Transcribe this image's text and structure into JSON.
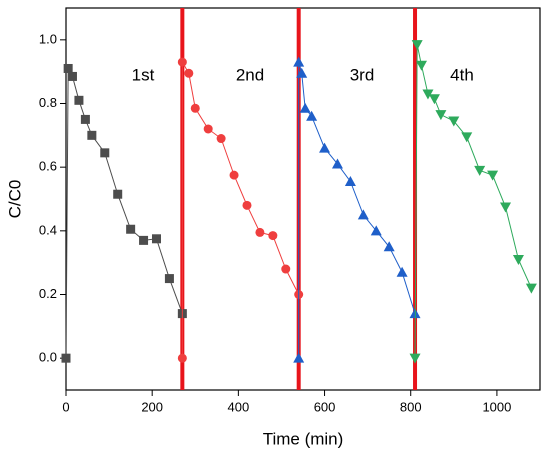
{
  "chart_data": {
    "type": "line",
    "x_label": "Time (min)",
    "y_label": "C/C0",
    "xlim": [
      0,
      1100
    ],
    "xticks": [
      0,
      200,
      400,
      600,
      800,
      1000
    ],
    "ylim": [
      -0.1,
      1.1
    ],
    "yticks": [
      {
        "value": 0,
        "label": "0.0"
      },
      0.2,
      0.4,
      0.6,
      0.8,
      {
        "value": 1,
        "label": "1.0"
      }
    ],
    "vlines": [
      270,
      540,
      810
    ],
    "vline_color": "#e8141b",
    "annotations": [
      "1st",
      "2nd",
      "3rd",
      "4th"
    ],
    "series": [
      {
        "color": "#4d4d4d",
        "marker": "square",
        "x": [
          0,
          5,
          15,
          30,
          45,
          60,
          90,
          120,
          150,
          180,
          210,
          240,
          270
        ],
        "values": [
          0,
          0.91,
          0.885,
          0.81,
          0.75,
          0.7,
          0.645,
          0.515,
          0.405,
          0.37,
          0.375,
          0.25,
          0.14
        ]
      },
      {
        "color": "#ef3e3e",
        "marker": "circle",
        "x": [
          270,
          270,
          285,
          300,
          330,
          360,
          390,
          420,
          450,
          480,
          510,
          540
        ],
        "values": [
          0,
          0.93,
          0.895,
          0.785,
          0.72,
          0.69,
          0.575,
          0.48,
          0.395,
          0.385,
          0.28,
          0.2
        ]
      },
      {
        "color": "#1f5fc9",
        "marker": "triangle-up",
        "x": [
          540,
          540,
          547,
          555,
          570,
          600,
          630,
          660,
          690,
          720,
          750,
          780,
          810
        ],
        "values": [
          0,
          0.93,
          0.895,
          0.785,
          0.76,
          0.66,
          0.61,
          0.555,
          0.45,
          0.4,
          0.35,
          0.27,
          0.14
        ]
      },
      {
        "color": "#2eaa5c",
        "marker": "triangle-down",
        "x": [
          810,
          815,
          825,
          840,
          855,
          870,
          900,
          930,
          960,
          990,
          1020,
          1050,
          1080
        ],
        "values": [
          0,
          0.985,
          0.92,
          0.83,
          0.815,
          0.765,
          0.745,
          0.695,
          0.59,
          0.575,
          0.475,
          0.31,
          0.22
        ]
      }
    ]
  }
}
